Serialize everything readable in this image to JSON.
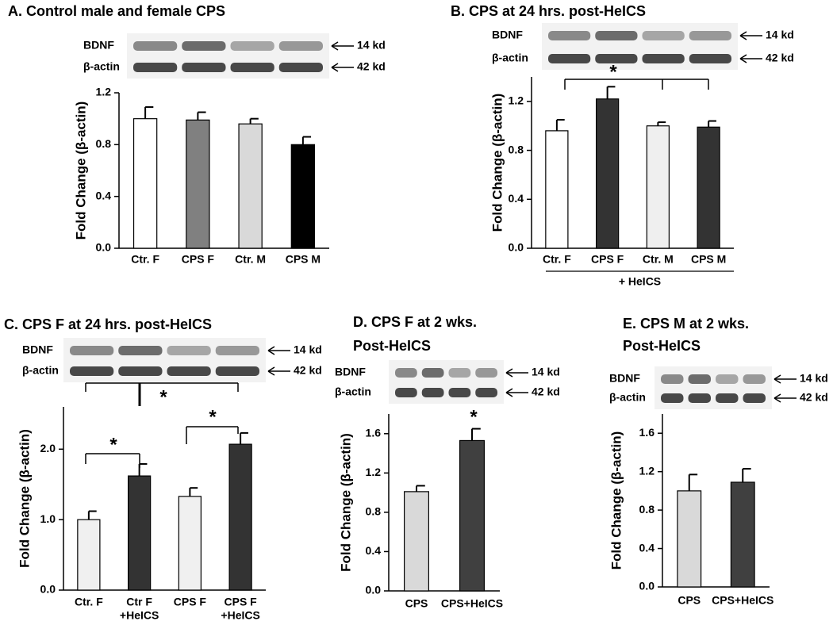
{
  "chart_data": [
    {
      "type": "bar",
      "title": "A. Control male and female CPS",
      "y_label": "Fold Change (β-actin)",
      "categories": [
        "Ctr. F",
        "CPS F",
        "Ctr. M",
        "CPS M"
      ],
      "values": [
        1.0,
        0.99,
        0.96,
        0.8
      ],
      "errors": [
        0.09,
        0.06,
        0.04,
        0.06
      ],
      "colors": [
        "#ffffff",
        "#808080",
        "#d9d9d9",
        "#000000"
      ],
      "ylim": [
        0,
        1.2
      ],
      "yticks": [
        {
          "value": 0,
          "label": "0.0"
        },
        0.4,
        0.8,
        1.2
      ],
      "blot": {
        "labels": [
          "BDNF",
          "β-actin"
        ],
        "sizes": [
          "14 kd",
          "42 kd"
        ]
      }
    },
    {
      "type": "bar",
      "title": "B.  CPS at 24 hrs. post-HeICS",
      "y_label": "Fold Change (β-actin)",
      "categories": [
        "Ctr. F",
        "CPS F",
        "Ctr. M",
        "CPS M"
      ],
      "values": [
        0.96,
        1.22,
        1.0,
        0.99
      ],
      "errors": [
        0.09,
        0.1,
        0.03,
        0.05
      ],
      "colors": [
        "#ffffff",
        "#333333",
        "#efefef",
        "#333333"
      ],
      "ylim": [
        0,
        1.4
      ],
      "yticks": [
        {
          "value": 0,
          "label": "0.0"
        },
        0.4,
        0.8,
        1.2
      ],
      "group_label": "+ HeICS",
      "annotations": [
        "*"
      ],
      "blot": {
        "labels": [
          "BDNF",
          "β-actin"
        ],
        "sizes": [
          "14 kd",
          "42 kd"
        ]
      }
    },
    {
      "type": "bar",
      "title": "C.  CPS F at 24 hrs. post-HeICS",
      "y_label": "Fold Change (β-actin)",
      "categories": [
        [
          "Ctr. F"
        ],
        [
          "Ctr F",
          "+HeICS"
        ],
        [
          "CPS F"
        ],
        [
          "CPS  F",
          "+HeICS"
        ]
      ],
      "values": [
        1.0,
        1.62,
        1.33,
        2.07
      ],
      "errors": [
        0.12,
        0.17,
        0.12,
        0.16
      ],
      "colors": [
        "#f0f0f0",
        "#333333",
        "#f0f0f0",
        "#333333"
      ],
      "ylim": [
        0,
        2.6
      ],
      "yticks": [
        {
          "value": 0,
          "label": "0.0"
        },
        {
          "value": 1,
          "label": "1.0"
        },
        {
          "value": 2,
          "label": "2.0"
        }
      ],
      "annotations": [
        "*",
        "*",
        "*"
      ],
      "blot": {
        "labels": [
          "BDNF",
          "β-actin"
        ],
        "sizes": [
          "14 kd",
          "42 kd"
        ]
      }
    },
    {
      "type": "bar",
      "title": [
        "D.  CPS F at 2 wks.",
        "Post-HeICS"
      ],
      "y_label": "Fold Change (β-actin)",
      "categories": [
        "CPS",
        "CPS+HeICS"
      ],
      "values": [
        1.01,
        1.53
      ],
      "errors": [
        0.06,
        0.12
      ],
      "colors": [
        "#d9d9d9",
        "#404040"
      ],
      "ylim": [
        0,
        1.8
      ],
      "yticks": [
        {
          "value": 0,
          "label": "0.0"
        },
        0.4,
        0.8,
        1.2,
        1.6
      ],
      "annotations": [
        "*"
      ],
      "blot": {
        "labels": [
          "BDNF",
          "β-actin"
        ],
        "sizes": [
          "14 kd",
          "42 kd"
        ]
      }
    },
    {
      "type": "bar",
      "title": [
        "E.  CPS M at 2 wks.",
        "Post-HeICS"
      ],
      "y_label": "Fold Change (β-actin)",
      "categories": [
        "CPS",
        "CPS+HeICS"
      ],
      "values": [
        1.0,
        1.09
      ],
      "errors": [
        0.17,
        0.14
      ],
      "colors": [
        "#d9d9d9",
        "#404040"
      ],
      "ylim": [
        0,
        1.8
      ],
      "yticks": [
        {
          "value": 0,
          "label": "0.0"
        },
        0.4,
        0.8,
        1.2,
        1.6
      ],
      "blot": {
        "labels": [
          "BDNF",
          "β-actin"
        ],
        "sizes": [
          "14 kd",
          "42 kd"
        ]
      }
    }
  ]
}
